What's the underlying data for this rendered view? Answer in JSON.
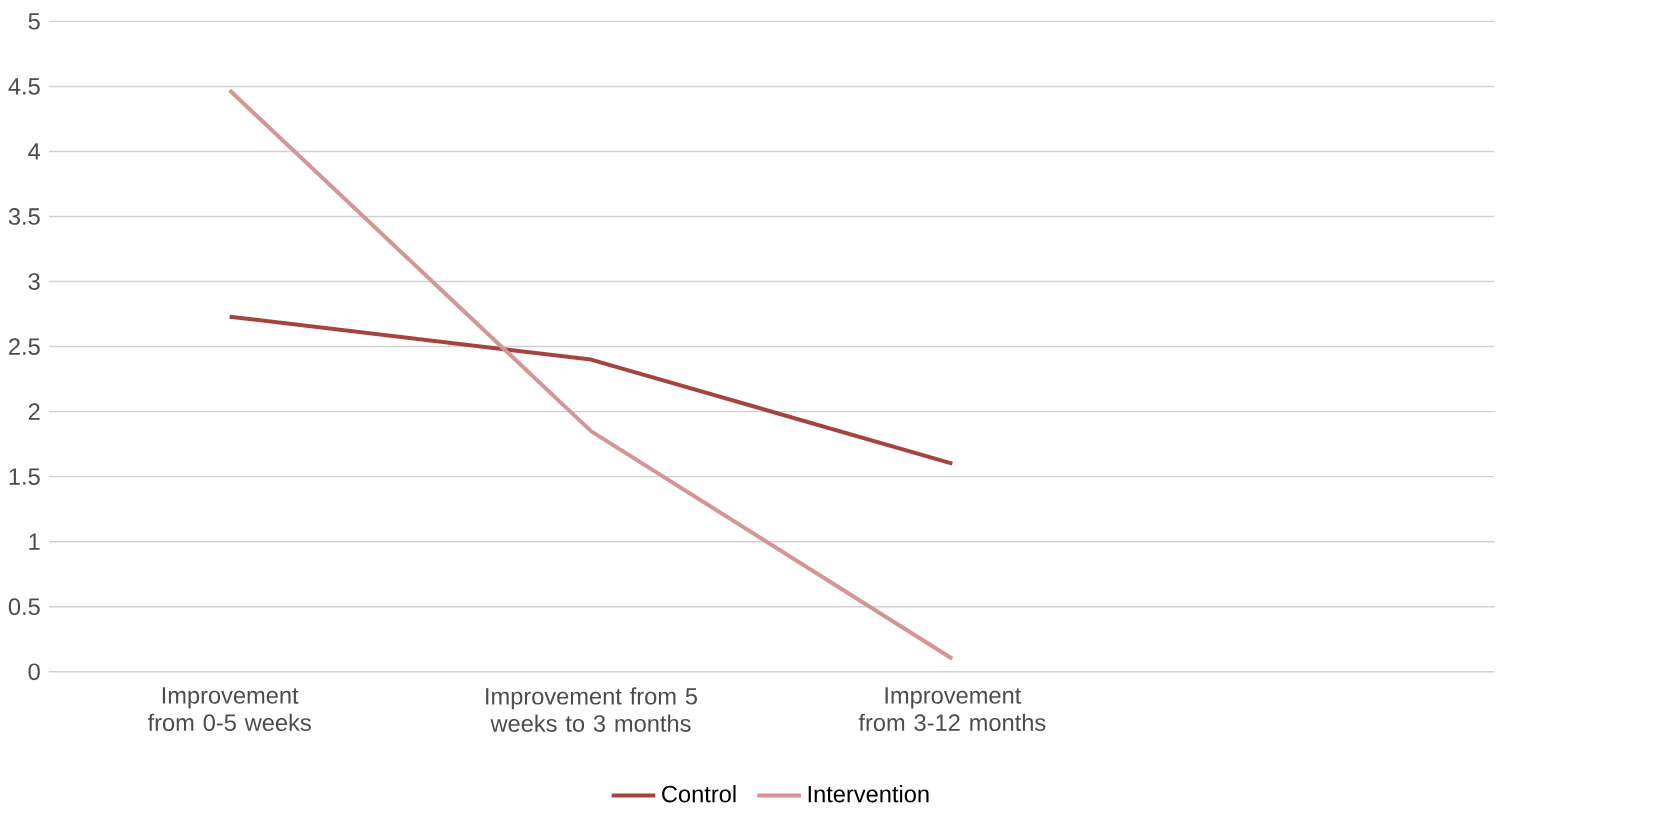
{
  "chart_data": {
    "type": "line",
    "categories": [
      "Improvement from 0-5 weeks",
      "Improvement from 5 weeks to 3 months",
      "Improvement from 3-12 months",
      null
    ],
    "series": [
      {
        "name": "Control",
        "color": "#a5443f",
        "values": [
          2.73,
          2.4,
          1.6,
          null
        ]
      },
      {
        "name": "Intervention",
        "color": "#d49594",
        "values": [
          4.47,
          1.85,
          0.1,
          null
        ]
      }
    ],
    "ylim": [
      0,
      5
    ],
    "yticks": [
      0,
      0.5,
      1,
      1.5,
      2,
      2.5,
      3,
      3.5,
      4,
      4.5,
      5
    ],
    "grid": "y",
    "legend": "bottom"
  }
}
